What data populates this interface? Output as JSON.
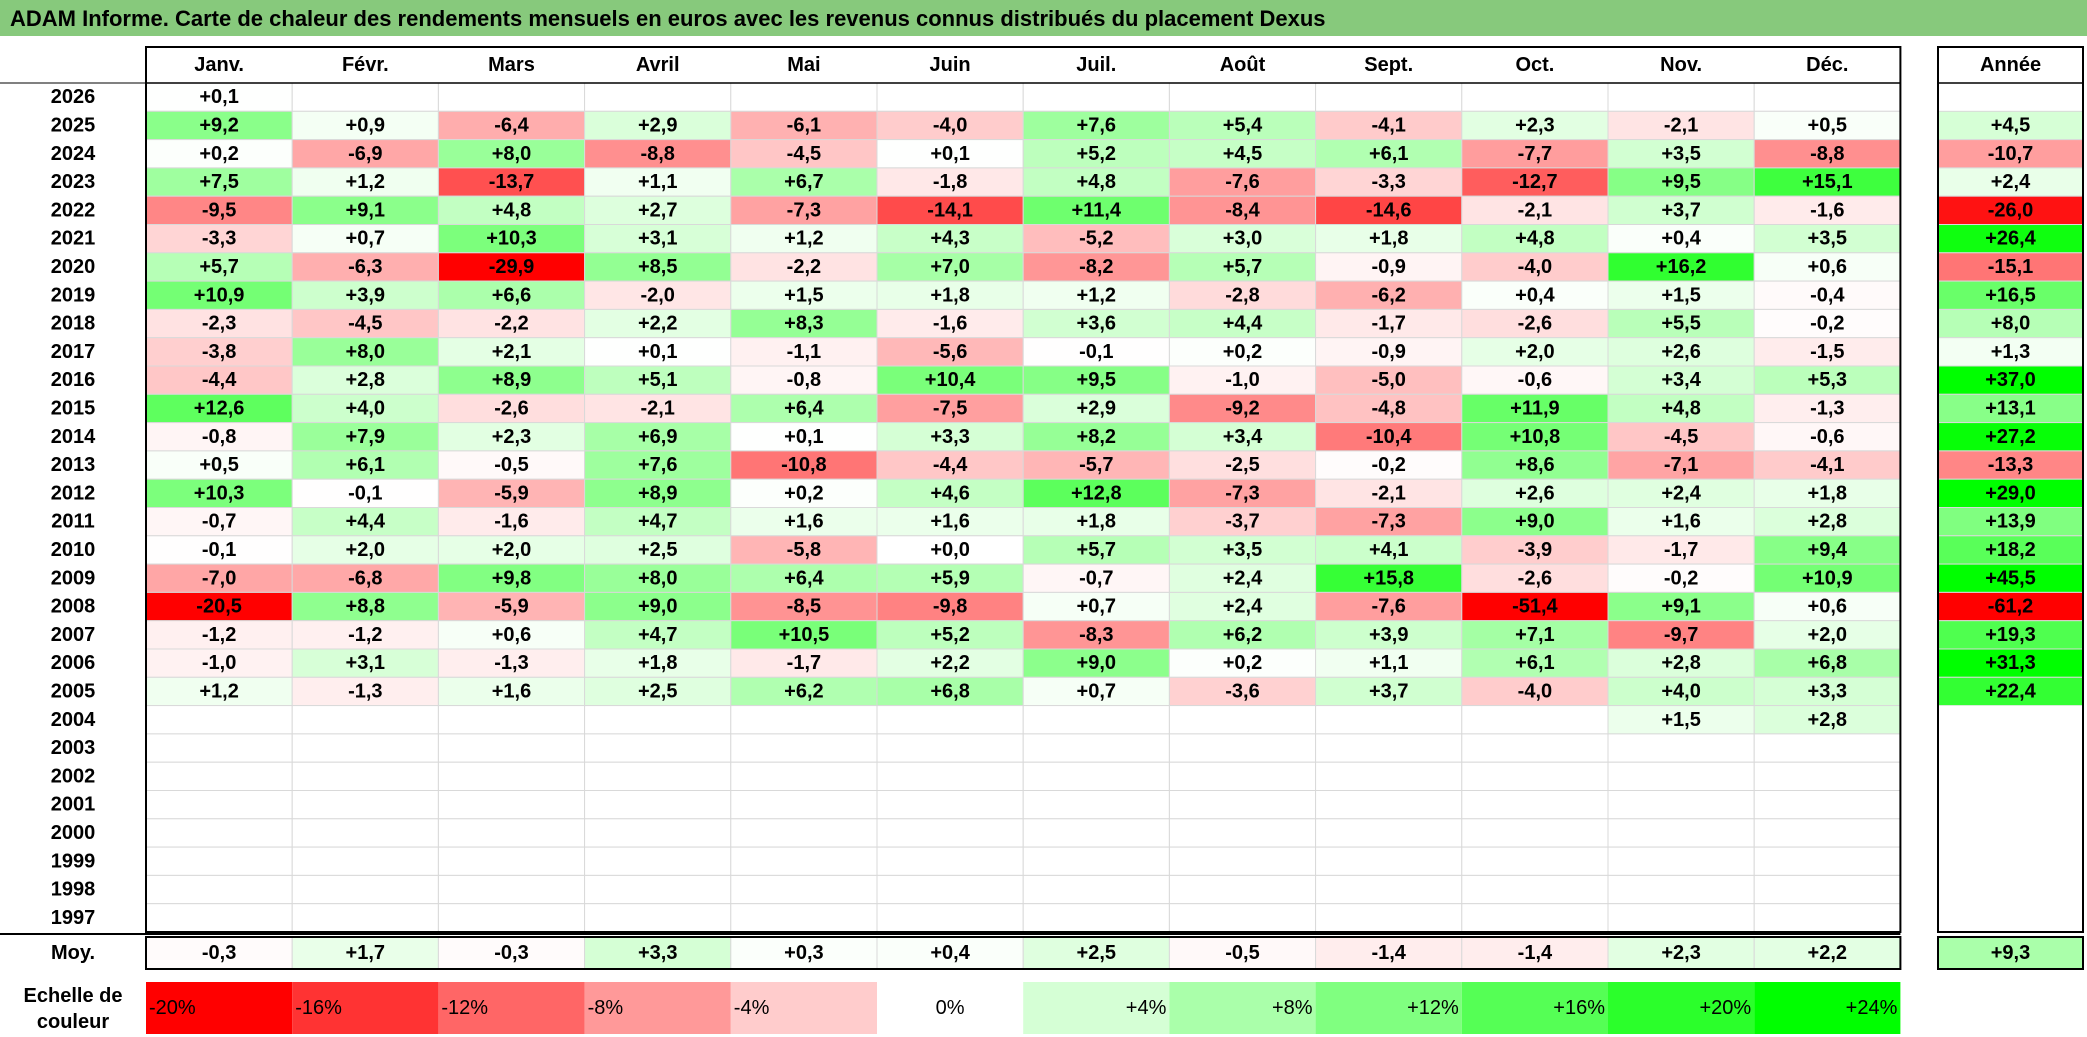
{
  "title": "ADAM Informe. Carte de chaleur des rendements mensuels en euros avec les revenus connus distribués du placement Dexus",
  "chart_data": {
    "type": "heatmap",
    "title": "ADAM Informe. Carte de chaleur des rendements mensuels en euros avec les revenus connus distribués du placement Dexus",
    "columns": [
      "Janv.",
      "Févr.",
      "Mars",
      "Avril",
      "Mai",
      "Juin",
      "Juil.",
      "Août",
      "Sept.",
      "Oct.",
      "Nov.",
      "Déc."
    ],
    "annual_header": "Année",
    "rows": [
      {
        "year": "2026",
        "values": [
          "+0,1",
          "",
          "",
          "",
          "",
          "",
          "",
          "",
          "",
          "",
          "",
          ""
        ],
        "annual": ""
      },
      {
        "year": "2025",
        "values": [
          "+9,2",
          "+0,9",
          "-6,4",
          "+2,9",
          "-6,1",
          "-4,0",
          "+7,6",
          "+5,4",
          "-4,1",
          "+2,3",
          "-2,1",
          "+0,5"
        ],
        "annual": "+4,5"
      },
      {
        "year": "2024",
        "values": [
          "+0,2",
          "-6,9",
          "+8,0",
          "-8,8",
          "-4,5",
          "+0,1",
          "+5,2",
          "+4,5",
          "+6,1",
          "-7,7",
          "+3,5",
          "-8,8"
        ],
        "annual": "-10,7"
      },
      {
        "year": "2023",
        "values": [
          "+7,5",
          "+1,2",
          "-13,7",
          "+1,1",
          "+6,7",
          "-1,8",
          "+4,8",
          "-7,6",
          "-3,3",
          "-12,7",
          "+9,5",
          "+15,1"
        ],
        "annual": "+2,4"
      },
      {
        "year": "2022",
        "values": [
          "-9,5",
          "+9,1",
          "+4,8",
          "+2,7",
          "-7,3",
          "-14,1",
          "+11,4",
          "-8,4",
          "-14,6",
          "-2,1",
          "+3,7",
          "-1,6"
        ],
        "annual": "-26,0"
      },
      {
        "year": "2021",
        "values": [
          "-3,3",
          "+0,7",
          "+10,3",
          "+3,1",
          "+1,2",
          "+4,3",
          "-5,2",
          "+3,0",
          "+1,8",
          "+4,8",
          "+0,4",
          "+3,5"
        ],
        "annual": "+26,4"
      },
      {
        "year": "2020",
        "values": [
          "+5,7",
          "-6,3",
          "-29,9",
          "+8,5",
          "-2,2",
          "+7,0",
          "-8,2",
          "+5,7",
          "-0,9",
          "-4,0",
          "+16,2",
          "+0,6"
        ],
        "annual": "-15,1"
      },
      {
        "year": "2019",
        "values": [
          "+10,9",
          "+3,9",
          "+6,6",
          "-2,0",
          "+1,5",
          "+1,8",
          "+1,2",
          "-2,8",
          "-6,2",
          "+0,4",
          "+1,5",
          "-0,4"
        ],
        "annual": "+16,5"
      },
      {
        "year": "2018",
        "values": [
          "-2,3",
          "-4,5",
          "-2,2",
          "+2,2",
          "+8,3",
          "-1,6",
          "+3,6",
          "+4,4",
          "-1,7",
          "-2,6",
          "+5,5",
          "-0,2"
        ],
        "annual": "+8,0"
      },
      {
        "year": "2017",
        "values": [
          "-3,8",
          "+8,0",
          "+2,1",
          "+0,1",
          "-1,1",
          "-5,6",
          "-0,1",
          "+0,2",
          "-0,9",
          "+2,0",
          "+2,6",
          "-1,5"
        ],
        "annual": "+1,3"
      },
      {
        "year": "2016",
        "values": [
          "-4,4",
          "+2,8",
          "+8,9",
          "+5,1",
          "-0,8",
          "+10,4",
          "+9,5",
          "-1,0",
          "-5,0",
          "-0,6",
          "+3,4",
          "+5,3"
        ],
        "annual": "+37,0"
      },
      {
        "year": "2015",
        "values": [
          "+12,6",
          "+4,0",
          "-2,6",
          "-2,1",
          "+6,4",
          "-7,5",
          "+2,9",
          "-9,2",
          "-4,8",
          "+11,9",
          "+4,8",
          "-1,3"
        ],
        "annual": "+13,1"
      },
      {
        "year": "2014",
        "values": [
          "-0,8",
          "+7,9",
          "+2,3",
          "+6,9",
          "+0,1",
          "+3,3",
          "+8,2",
          "+3,4",
          "-10,4",
          "+10,8",
          "-4,5",
          "-0,6"
        ],
        "annual": "+27,2"
      },
      {
        "year": "2013",
        "values": [
          "+0,5",
          "+6,1",
          "-0,5",
          "+7,6",
          "-10,8",
          "-4,4",
          "-5,7",
          "-2,5",
          "-0,2",
          "+8,6",
          "-7,1",
          "-4,1"
        ],
        "annual": "-13,3"
      },
      {
        "year": "2012",
        "values": [
          "+10,3",
          "-0,1",
          "-5,9",
          "+8,9",
          "+0,2",
          "+4,6",
          "+12,8",
          "-7,3",
          "-2,1",
          "+2,6",
          "+2,4",
          "+1,8"
        ],
        "annual": "+29,0"
      },
      {
        "year": "2011",
        "values": [
          "-0,7",
          "+4,4",
          "-1,6",
          "+4,7",
          "+1,6",
          "+1,6",
          "+1,8",
          "-3,7",
          "-7,3",
          "+9,0",
          "+1,6",
          "+2,8"
        ],
        "annual": "+13,9"
      },
      {
        "year": "2010",
        "values": [
          "-0,1",
          "+2,0",
          "+2,0",
          "+2,5",
          "-5,8",
          "+0,0",
          "+5,7",
          "+3,5",
          "+4,1",
          "-3,9",
          "-1,7",
          "+9,4"
        ],
        "annual": "+18,2"
      },
      {
        "year": "2009",
        "values": [
          "-7,0",
          "-6,8",
          "+9,8",
          "+8,0",
          "+6,4",
          "+5,9",
          "-0,7",
          "+2,4",
          "+15,8",
          "-2,6",
          "-0,2",
          "+10,9"
        ],
        "annual": "+45,5"
      },
      {
        "year": "2008",
        "values": [
          "-20,5",
          "+8,8",
          "-5,9",
          "+9,0",
          "-8,5",
          "-9,8",
          "+0,7",
          "+2,4",
          "-7,6",
          "-51,4",
          "+9,1",
          "+0,6"
        ],
        "annual": "-61,2"
      },
      {
        "year": "2007",
        "values": [
          "-1,2",
          "-1,2",
          "+0,6",
          "+4,7",
          "+10,5",
          "+5,2",
          "-8,3",
          "+6,2",
          "+3,9",
          "+7,1",
          "-9,7",
          "+2,0"
        ],
        "annual": "+19,3"
      },
      {
        "year": "2006",
        "values": [
          "-1,0",
          "+3,1",
          "-1,3",
          "+1,8",
          "-1,7",
          "+2,2",
          "+9,0",
          "+0,2",
          "+1,1",
          "+6,1",
          "+2,8",
          "+6,8"
        ],
        "annual": "+31,3"
      },
      {
        "year": "2005",
        "values": [
          "+1,2",
          "-1,3",
          "+1,6",
          "+2,5",
          "+6,2",
          "+6,8",
          "+0,7",
          "-3,6",
          "+3,7",
          "-4,0",
          "+4,0",
          "+3,3"
        ],
        "annual": "+22,4"
      },
      {
        "year": "2004",
        "values": [
          "",
          "",
          "",
          "",
          "",
          "",
          "",
          "",
          "",
          "",
          "+1,5",
          "+2,8"
        ],
        "annual": ""
      },
      {
        "year": "2003",
        "values": [
          "",
          "",
          "",
          "",
          "",
          "",
          "",
          "",
          "",
          "",
          "",
          ""
        ],
        "annual": ""
      },
      {
        "year": "2002",
        "values": [
          "",
          "",
          "",
          "",
          "",
          "",
          "",
          "",
          "",
          "",
          "",
          ""
        ],
        "annual": ""
      },
      {
        "year": "2001",
        "values": [
          "",
          "",
          "",
          "",
          "",
          "",
          "",
          "",
          "",
          "",
          "",
          ""
        ],
        "annual": ""
      },
      {
        "year": "2000",
        "values": [
          "",
          "",
          "",
          "",
          "",
          "",
          "",
          "",
          "",
          "",
          "",
          ""
        ],
        "annual": ""
      },
      {
        "year": "1999",
        "values": [
          "",
          "",
          "",
          "",
          "",
          "",
          "",
          "",
          "",
          "",
          "",
          ""
        ],
        "annual": ""
      },
      {
        "year": "1998",
        "values": [
          "",
          "",
          "",
          "",
          "",
          "",
          "",
          "",
          "",
          "",
          "",
          ""
        ],
        "annual": ""
      },
      {
        "year": "1997",
        "values": [
          "",
          "",
          "",
          "",
          "",
          "",
          "",
          "",
          "",
          "",
          "",
          ""
        ],
        "annual": ""
      }
    ],
    "average": {
      "label": "Moy.",
      "values": [
        "-0,3",
        "+1,7",
        "-0,3",
        "+3,3",
        "+0,3",
        "+0,4",
        "+2,5",
        "-0,5",
        "-1,4",
        "-1,4",
        "+2,3",
        "+2,2"
      ],
      "annual": "+9,3"
    },
    "scale": {
      "label_line1": "Echelle de",
      "label_line2": "couleur",
      "items": [
        {
          "label": "-20%",
          "value": -20
        },
        {
          "label": "-16%",
          "value": -16
        },
        {
          "label": "-12%",
          "value": -12
        },
        {
          "label": "-8%",
          "value": -8
        },
        {
          "label": "-4%",
          "value": -4
        },
        {
          "label": "0%",
          "value": 0
        },
        {
          "label": "+4%",
          "value": 4
        },
        {
          "label": "+8%",
          "value": 8
        },
        {
          "label": "+12%",
          "value": 12
        },
        {
          "label": "+16%",
          "value": 16
        },
        {
          "label": "+20%",
          "value": 20
        },
        {
          "label": "+24%",
          "value": 24
        }
      ]
    },
    "colors": {
      "title_bar": "#87c97c",
      "strong_negative": "#ff0000",
      "neutral": "#ffffff",
      "strong_positive": "#00ff00"
    }
  }
}
